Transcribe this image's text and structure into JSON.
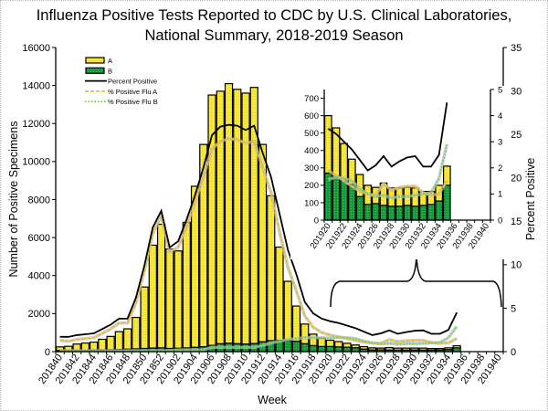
{
  "chart_data": {
    "type": "bar",
    "title_line1": "Influenza Positive Tests Reported to CDC by U.S. Clinical Laboratories,",
    "title_line2": "National Summary, 2018-2019 Season",
    "xlabel": "Week",
    "ylabel": "Number of Positive Specimens",
    "y2label": "Percent Positive",
    "ylim": [
      0,
      16000
    ],
    "yticks": [
      0,
      2000,
      4000,
      6000,
      8000,
      10000,
      12000,
      14000,
      16000
    ],
    "y2lim": [
      0,
      35
    ],
    "y2ticks": [
      0,
      5,
      10,
      15,
      20,
      25,
      30,
      35
    ],
    "legend_placement": "top-left",
    "categories": [
      "201840",
      "201841",
      "201842",
      "201843",
      "201844",
      "201845",
      "201846",
      "201847",
      "201848",
      "201849",
      "201850",
      "201851",
      "201852",
      "201901",
      "201902",
      "201903",
      "201904",
      "201905",
      "201906",
      "201907",
      "201908",
      "201909",
      "201910",
      "201911",
      "201912",
      "201913",
      "201914",
      "201915",
      "201916",
      "201917",
      "201918",
      "201919",
      "201920",
      "201921",
      "201922",
      "201923",
      "201924",
      "201925",
      "201926",
      "201927",
      "201928",
      "201929",
      "201930",
      "201931",
      "201932",
      "201933",
      "201934",
      "201935",
      "201936",
      "201937",
      "201938",
      "201939",
      "201940"
    ],
    "tick_labels": [
      "201840",
      "201842",
      "201844",
      "201846",
      "201848",
      "201850",
      "201852",
      "201902",
      "201904",
      "201906",
      "201908",
      "201910",
      "201912",
      "201914",
      "201916",
      "201918",
      "201920",
      "201922",
      "201924",
      "201926",
      "201928",
      "201930",
      "201932",
      "201934",
      "201936",
      "201938",
      "201940"
    ],
    "series": [
      {
        "name": "A",
        "kind": "bar",
        "axis": "left",
        "color": "#f7e83a",
        "values": [
          190,
          220,
          330,
          380,
          420,
          560,
          700,
          940,
          1070,
          1650,
          3230,
          5410,
          6500,
          5230,
          5120,
          6600,
          8470,
          10640,
          13170,
          13280,
          13650,
          13380,
          13200,
          13470,
          10380,
          7620,
          4900,
          3120,
          1860,
          1030,
          600,
          430,
          330,
          280,
          210,
          145,
          127,
          110,
          93,
          128,
          105,
          105,
          103,
          105,
          80,
          75,
          90,
          110,
          null,
          null,
          null,
          null,
          null
        ]
      },
      {
        "name": "B",
        "kind": "bar",
        "axis": "left",
        "color": "#149a3c",
        "values": [
          60,
          60,
          70,
          70,
          80,
          90,
          100,
          110,
          130,
          150,
          170,
          190,
          200,
          170,
          180,
          200,
          230,
          260,
          330,
          420,
          450,
          420,
          400,
          430,
          520,
          580,
          600,
          580,
          540,
          420,
          320,
          270,
          270,
          250,
          230,
          205,
          135,
          90,
          95,
          85,
          80,
          80,
          85,
          80,
          85,
          90,
          110,
          200,
          null,
          null,
          null,
          null,
          null
        ]
      },
      {
        "name": "Percent Positive",
        "kind": "line",
        "axis": "right",
        "color": "#000000",
        "values": [
          1.7,
          1.7,
          1.9,
          2.0,
          2.1,
          2.6,
          3.1,
          3.8,
          3.8,
          6.2,
          9.9,
          14.3,
          16.2,
          12.0,
          12.7,
          15.2,
          18.0,
          21.2,
          24.9,
          25.9,
          26.1,
          26.0,
          25.5,
          26.0,
          22.9,
          20.1,
          15.9,
          11.7,
          8.9,
          5.7,
          4.4,
          3.8,
          3.5,
          3.3,
          3.0,
          2.7,
          2.3,
          1.9,
          2.1,
          2.45,
          2.05,
          2.25,
          2.4,
          2.45,
          2.05,
          2.05,
          2.5,
          4.5,
          null,
          null,
          null,
          null,
          null
        ]
      },
      {
        "name": "% Positive Flu A",
        "kind": "line",
        "axis": "right",
        "color": "#f0c020",
        "values": [
          1.3,
          1.2,
          1.4,
          1.5,
          1.6,
          2.1,
          2.6,
          3.3,
          3.3,
          5.6,
          9.3,
          13.6,
          15.6,
          11.5,
          12.0,
          14.4,
          17.2,
          20.2,
          23.3,
          24.2,
          24.5,
          24.4,
          24.0,
          24.2,
          21.2,
          18.3,
          13.8,
          9.7,
          7.0,
          4.1,
          2.8,
          2.2,
          1.9,
          1.7,
          1.5,
          1.3,
          1.1,
          1.0,
          0.95,
          1.4,
          1.15,
          1.25,
          1.3,
          1.3,
          1.05,
          0.95,
          1.0,
          1.5,
          null,
          null,
          null,
          null,
          null
        ]
      },
      {
        "name": "% Positive Flu B",
        "kind": "line",
        "axis": "right",
        "color": "#66dd33",
        "values": [
          0.1,
          0.1,
          0.1,
          0.1,
          0.1,
          0.1,
          0.1,
          0.1,
          0.1,
          0.1,
          0.1,
          0.1,
          0.1,
          0.1,
          0.2,
          0.2,
          0.2,
          0.2,
          0.5,
          0.5,
          0.5,
          0.5,
          0.5,
          0.5,
          0.7,
          1.0,
          1.2,
          1.4,
          1.5,
          1.6,
          1.6,
          1.6,
          1.55,
          1.65,
          1.6,
          1.5,
          1.2,
          1.0,
          0.9,
          0.95,
          0.85,
          0.9,
          0.9,
          0.95,
          1.0,
          1.05,
          1.6,
          2.9,
          null,
          null,
          null,
          null,
          null
        ]
      }
    ],
    "inset": {
      "x_range": [
        "201920",
        "201940"
      ],
      "ylim": [
        0,
        750
      ],
      "yticks": [
        0,
        100,
        200,
        300,
        400,
        500,
        600,
        700
      ],
      "y2lim": [
        0,
        5
      ],
      "y2ticks": [
        0,
        1,
        2,
        3,
        4,
        5
      ],
      "tick_labels": [
        "201920",
        "201922",
        "201924",
        "201926",
        "201928",
        "201930",
        "201932",
        "201934",
        "201936",
        "201938",
        "201940"
      ]
    }
  }
}
